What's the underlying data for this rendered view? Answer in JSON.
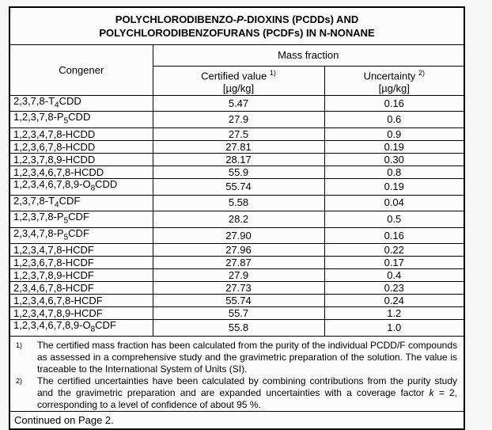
{
  "title": {
    "line1_segments": [
      {
        "text": "POLYCHLORODIBENZO-",
        "italic": false
      },
      {
        "text": "P",
        "italic": true
      },
      {
        "text": "-DIOXINS (PCDDs) AND",
        "italic": false
      }
    ],
    "line2_segments": [
      {
        "text": "POLYCHLORODIBENZOFURANS (PCDFs) IN N-NONANE",
        "italic": false
      }
    ]
  },
  "table": {
    "header": {
      "congener": "Congener",
      "mass_fraction": "Mass fraction",
      "certified_label": "Certified value",
      "certified_sup": "1)",
      "uncertainty_label": "Uncertainty",
      "uncertainty_sup": "2)",
      "unit": "[µg/kg]"
    },
    "rows": [
      {
        "congener_pre": "2,3,7,8-T",
        "congener_sub": "4",
        "congener_post": "CDD",
        "certified": "5.47",
        "uncertainty": "0.16"
      },
      {
        "congener_pre": "1,2,3,7,8-P",
        "congener_sub": "5",
        "congener_post": "CDD",
        "certified": "27.9",
        "uncertainty": "0.6"
      },
      {
        "congener_pre": "1,2,3,4,7,8-HCDD",
        "congener_sub": "",
        "congener_post": "",
        "certified": "27.5",
        "uncertainty": "0.9"
      },
      {
        "congener_pre": "1,2,3,6,7,8-HCDD",
        "congener_sub": "",
        "congener_post": "",
        "certified": "27.81",
        "uncertainty": "0.19"
      },
      {
        "congener_pre": "1,2,3,7,8,9-HCDD",
        "congener_sub": "",
        "congener_post": "",
        "certified": "28.17",
        "uncertainty": "0.30"
      },
      {
        "congener_pre": "1,2,3,4,6,7,8-HCDD",
        "congener_sub": "",
        "congener_post": "",
        "certified": "55.9",
        "uncertainty": "0.8"
      },
      {
        "congener_pre": "1,2,3,4,6,7,8,9-O",
        "congener_sub": "8",
        "congener_post": "CDD",
        "certified": "55.74",
        "uncertainty": "0.19"
      },
      {
        "congener_pre": "2,3,7,8-T",
        "congener_sub": "4",
        "congener_post": "CDF",
        "certified": "5.58",
        "uncertainty": "0.04"
      },
      {
        "congener_pre": "1,2,3,7,8-P",
        "congener_sub": "5",
        "congener_post": "CDF",
        "certified": "28.2",
        "uncertainty": "0.5"
      },
      {
        "congener_pre": "2,3,4,7,8-P",
        "congener_sub": "5",
        "congener_post": "CDF",
        "certified": "27.90",
        "uncertainty": "0.16"
      },
      {
        "congener_pre": "1,2,3,4,7,8-HCDF",
        "congener_sub": "",
        "congener_post": "",
        "certified": "27.96",
        "uncertainty": "0.22"
      },
      {
        "congener_pre": "1,2,3,6,7,8-HCDF",
        "congener_sub": "",
        "congener_post": "",
        "certified": "27.87",
        "uncertainty": "0.17"
      },
      {
        "congener_pre": "1,2,3,7,8,9-HCDF",
        "congener_sub": "",
        "congener_post": "",
        "certified": "27.9",
        "uncertainty": "0.4"
      },
      {
        "congener_pre": "2,3,4,6,7,8-HCDF",
        "congener_sub": "",
        "congener_post": "",
        "certified": "27.73",
        "uncertainty": "0.23"
      },
      {
        "congener_pre": "1,2,3,4,6,7,8-HCDF",
        "congener_sub": "",
        "congener_post": "",
        "certified": "55.74",
        "uncertainty": "0.24"
      },
      {
        "congener_pre": "1,2,3,4,7,8,9-HCDF",
        "congener_sub": "",
        "congener_post": "",
        "certified": "55.7",
        "uncertainty": "1.2"
      },
      {
        "congener_pre": "1,2,3,4,6,7,8,9-O",
        "congener_sub": "8",
        "congener_post": "CDF",
        "certified": "55.8",
        "uncertainty": "1.0"
      }
    ]
  },
  "footnotes": [
    {
      "marker": "1)",
      "segments": [
        {
          "text": "The certified mass fraction has been calculated from the purity of the individual PCDD/F compounds as assessed in a comprehensive study and the gravimetric preparation of the solution. The value is traceable to the International System of Units (SI).",
          "italic": false
        }
      ]
    },
    {
      "marker": "2)",
      "segments": [
        {
          "text": "The certified uncertainties have been calculated by combining contributions from the purity study and the gravimetric preparation and are expanded uncertainties with a coverage factor ",
          "italic": false
        },
        {
          "text": "k",
          "italic": true
        },
        {
          "text": " = 2, corresponding to a level of confidence of about 95 %.",
          "italic": false
        }
      ]
    }
  ],
  "footer": {
    "continued": "Continued on Page 2."
  },
  "colors": {
    "page_background": "#f6f6f6",
    "table_background": "#fcfcfc",
    "border": "#000000",
    "text": "#000000"
  }
}
